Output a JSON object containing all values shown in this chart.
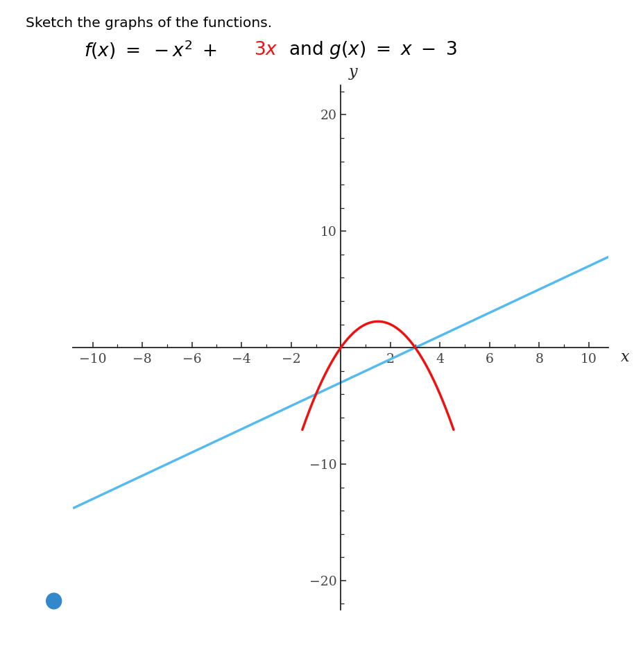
{
  "title_text": "Sketch the graphs of the functions.",
  "f_color": "#ee1111",
  "g_color": "#55bbee",
  "axis_color": "#222222",
  "tick_color": "#444444",
  "xlim": [
    -10.8,
    10.8
  ],
  "ylim": [
    -22.5,
    22.5
  ],
  "xticks": [
    -10,
    -8,
    -6,
    -4,
    -2,
    2,
    4,
    6,
    8,
    10
  ],
  "yticks": [
    -20,
    -10,
    10,
    20
  ],
  "xlabel": "x",
  "ylabel": "y",
  "background_color": "#ffffff",
  "dot_color": "#3388cc",
  "f_xmin": -1.55,
  "f_xmax": 4.55,
  "g_xmin": -10.8,
  "g_xmax": 10.8
}
